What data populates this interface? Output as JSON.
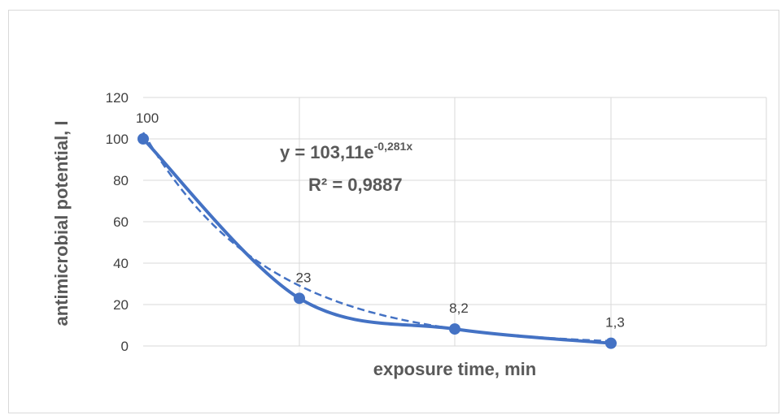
{
  "chart_data": {
    "type": "line",
    "title": "",
    "xlabel": "exposure time, min",
    "ylabel": "antimicrobial potential, I",
    "categories": [
      "",
      "",
      "",
      ""
    ],
    "series": [
      {
        "values": [
          100,
          23,
          8.2,
          1.3
        ],
        "data_labels": [
          "100",
          "23",
          "8,2",
          "1,3"
        ],
        "color": "#4472c4",
        "smooth": true
      }
    ],
    "trendline": {
      "type": "exponential",
      "coefficient": 103.11,
      "rate": -0.281,
      "style": "dashed",
      "color": "#4472c4",
      "equation_base": "y = 103,11e",
      "equation_exp": "-0,281x",
      "r2_label": "R² = 0,9887"
    },
    "ylim": [
      0,
      120
    ],
    "yticks": [
      "0",
      "20",
      "40",
      "60",
      "80",
      "100",
      "120"
    ],
    "grid": true,
    "legend": "none"
  }
}
